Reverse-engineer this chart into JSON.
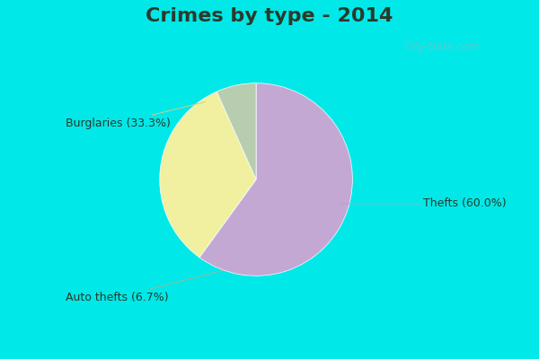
{
  "title": "Crimes by type - 2014",
  "slices": [
    {
      "label": "Thefts (60.0%)",
      "value": 60.0,
      "color": "#c4a8d4"
    },
    {
      "label": "Burglaries (33.3%)",
      "value": 33.3,
      "color": "#f0f0a0"
    },
    {
      "label": "Auto thefts (6.7%)",
      "value": 6.7,
      "color": "#b8ccb0"
    }
  ],
  "bg_cyan": "#00e8e8",
  "bg_main": "#d0ece0",
  "title_fontsize": 16,
  "label_fontsize": 9,
  "watermark": "City-Data.com",
  "startangle": 90,
  "title_color": "#2a3a2a",
  "label_color": "#2a3a2a",
  "cyan_bar_height": 0.09
}
